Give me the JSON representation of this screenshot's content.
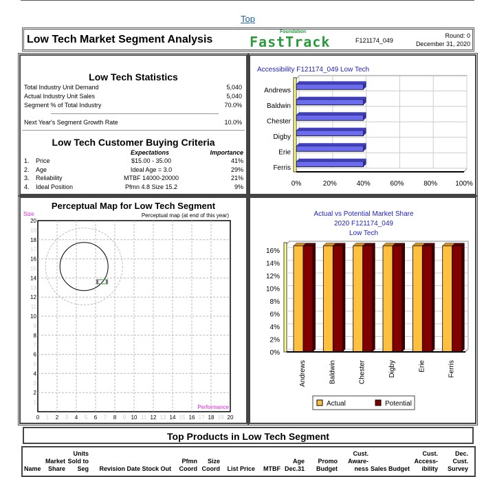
{
  "top_link": "Top",
  "header": {
    "title": "Low Tech Market Segment Analysis",
    "logo_small": "Foundation",
    "logo_big": "FastTrack",
    "team_id": "F121174_049",
    "round": "Round: 0",
    "date": "December 31, 2020"
  },
  "stats": {
    "title": "Low Tech Statistics",
    "rows": [
      {
        "label": "Total Industry Unit Demand",
        "value": "5,040"
      },
      {
        "label": "Actual Industry Unit Sales",
        "value": "5,040"
      },
      {
        "label": "Segment % of Total Industry",
        "value": "70.0%"
      }
    ],
    "growth": {
      "label": "Next Year's Segment Growth Rate",
      "value": "10.0%"
    }
  },
  "criteria": {
    "title": "Low Tech Customer Buying Criteria",
    "col_expect": "Expectations",
    "col_importance": "Importance",
    "rows": [
      {
        "num": "1.",
        "name": "Price",
        "expect": "$15.00 - 35.00",
        "importance": "41%"
      },
      {
        "num": "2.",
        "name": "Age",
        "expect": "Ideal Age = 3.0",
        "importance": "29%"
      },
      {
        "num": "3.",
        "name": "Reliability",
        "expect": "MTBF 14000-20000",
        "importance": "21%"
      },
      {
        "num": "4.",
        "name": "Ideal Position",
        "expect": "Pfmn 4.8 Size 15.2",
        "importance": "9%"
      }
    ]
  },
  "chart_data": [
    {
      "type": "bar",
      "orientation": "horizontal",
      "title": "Accessibility F121174_049 Low Tech",
      "categories": [
        "Andrews",
        "Baldwin",
        "Chester",
        "Digby",
        "Erie",
        "Ferris"
      ],
      "values": [
        40,
        40,
        40,
        40,
        40,
        40
      ],
      "xlim": [
        0,
        100
      ],
      "xticks": [
        "0%",
        "20%",
        "40%",
        "60%",
        "80%",
        "100%"
      ],
      "color": "#6b6bef",
      "grid": true
    },
    {
      "type": "scatter",
      "title": "Perceptual Map for Low Tech Segment",
      "subtitle": "Perceptual map (at end of this year)",
      "xlabel": "Performance",
      "ylabel": "Size",
      "xlim": [
        0,
        20
      ],
      "ylim": [
        0,
        20
      ],
      "grid": true,
      "ideal_circle": {
        "center": [
          4.8,
          15.2
        ],
        "radius": 2.5
      },
      "outer_circle": {
        "center": [
          4.8,
          15.2
        ],
        "radius": 4
      },
      "points": [
        {
          "x": 6.4,
          "y": 13.6,
          "color": "#c05050"
        },
        {
          "x": 6.4,
          "y": 13.6,
          "color": "#5050c0"
        },
        {
          "x": 6.4,
          "y": 13.6,
          "color": "#50a050"
        }
      ]
    },
    {
      "type": "bar",
      "title": [
        "Actual vs Potential Market Share",
        "2020 F121174_049",
        "Low Tech"
      ],
      "categories": [
        "Andrews",
        "Baldwin",
        "Chester",
        "Digby",
        "Erie",
        "Ferris"
      ],
      "series": [
        {
          "name": "Actual",
          "values": [
            16.7,
            16.7,
            16.7,
            16.7,
            16.7,
            16.7
          ],
          "color": "#ffc040"
        },
        {
          "name": "Potential",
          "values": [
            16.7,
            16.7,
            16.7,
            16.7,
            16.7,
            16.7
          ],
          "color": "#800000"
        }
      ],
      "ylim": [
        0,
        17
      ],
      "yticks": [
        "0%",
        "2%",
        "4%",
        "6%",
        "8%",
        "10%",
        "12%",
        "14%",
        "16%"
      ],
      "legend": "bottom",
      "grid": true
    }
  ],
  "table": {
    "title": "Top Products in Low Tech Segment",
    "columns": [
      "Name",
      "Market Share",
      "Units Sold to Seg",
      "Revision Date",
      "Stock Out",
      "Pfmn Coord",
      "Size Coord",
      "List Price",
      "MTBF",
      "Age Dec.31",
      "Promo Budget",
      "Cust. Aware- ness",
      "Sales Budget",
      "Cust. Access- ibility",
      "Dec. Cust. Survey"
    ]
  }
}
